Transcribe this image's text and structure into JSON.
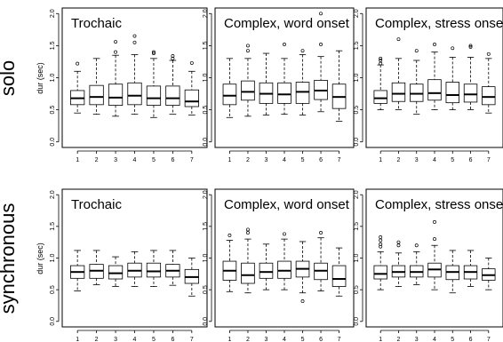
{
  "row_labels": [
    "solo",
    "synchronous"
  ],
  "y_axis_label": "dur (sec)",
  "chart_data": [
    {
      "type": "box",
      "title": "Trochaic",
      "row_label": "solo",
      "categories": [
        "1",
        "2",
        "3",
        "4",
        "5",
        "6",
        "7"
      ],
      "ylim": [
        0,
        2.0
      ],
      "yticks": [
        0.0,
        0.5,
        1.0,
        1.5,
        2.0
      ],
      "ytick_labels": [
        "0.0",
        "0.5",
        "1.0",
        "1.5",
        "2.0"
      ],
      "boxes": [
        {
          "whislo": 0.45,
          "q1": 0.58,
          "med": 0.68,
          "q3": 0.8,
          "whishi": 1.1,
          "fliers": [
            1.22
          ]
        },
        {
          "whislo": 0.43,
          "q1": 0.58,
          "med": 0.7,
          "q3": 0.88,
          "whishi": 1.3,
          "fliers": []
        },
        {
          "whislo": 0.4,
          "q1": 0.57,
          "med": 0.69,
          "q3": 0.9,
          "whishi": 1.35,
          "fliers": [
            1.4,
            1.56
          ]
        },
        {
          "whislo": 0.43,
          "q1": 0.58,
          "med": 0.72,
          "q3": 0.92,
          "whishi": 1.36,
          "fliers": [
            1.55,
            1.65
          ]
        },
        {
          "whislo": 0.38,
          "q1": 0.57,
          "med": 0.68,
          "q3": 0.87,
          "whishi": 1.3,
          "fliers": [
            1.38,
            1.4
          ]
        },
        {
          "whislo": 0.43,
          "q1": 0.57,
          "med": 0.68,
          "q3": 0.87,
          "whishi": 1.27,
          "fliers": [
            1.3,
            1.34
          ]
        },
        {
          "whislo": 0.42,
          "q1": 0.55,
          "med": 0.63,
          "q3": 0.81,
          "whishi": 1.1,
          "fliers": [
            1.23
          ]
        }
      ]
    },
    {
      "type": "box",
      "title": "Complex, word onset",
      "row_label": "solo",
      "categories": [
        "1",
        "2",
        "3",
        "4",
        "5",
        "6",
        "7"
      ],
      "ylim": [
        0,
        2.0
      ],
      "yticks": [
        0.0,
        0.5,
        1.0,
        1.5,
        2.0
      ],
      "ytick_labels": [
        "0.0",
        "0.5",
        "1.0",
        "1.5",
        "2.0"
      ],
      "boxes": [
        {
          "whislo": 0.38,
          "q1": 0.58,
          "med": 0.72,
          "q3": 0.9,
          "whishi": 1.3,
          "fliers": []
        },
        {
          "whislo": 0.4,
          "q1": 0.65,
          "med": 0.78,
          "q3": 0.95,
          "whishi": 1.3,
          "fliers": [
            1.42,
            1.5
          ]
        },
        {
          "whislo": 0.42,
          "q1": 0.6,
          "med": 0.75,
          "q3": 0.92,
          "whishi": 1.38,
          "fliers": []
        },
        {
          "whislo": 0.43,
          "q1": 0.6,
          "med": 0.74,
          "q3": 0.92,
          "whishi": 1.3,
          "fliers": [
            1.52
          ]
        },
        {
          "whislo": 0.42,
          "q1": 0.6,
          "med": 0.78,
          "q3": 0.93,
          "whishi": 1.36,
          "fliers": [
            1.42
          ]
        },
        {
          "whislo": 0.47,
          "q1": 0.66,
          "med": 0.8,
          "q3": 0.96,
          "whishi": 1.33,
          "fliers": [
            1.52,
            2.0
          ]
        },
        {
          "whislo": 0.32,
          "q1": 0.52,
          "med": 0.7,
          "q3": 0.9,
          "whishi": 1.42,
          "fliers": []
        }
      ]
    },
    {
      "type": "box",
      "title": "Complex, stress onset",
      "row_label": "solo",
      "categories": [
        "1",
        "2",
        "3",
        "4",
        "5",
        "6",
        "7"
      ],
      "ylim": [
        0,
        2.0
      ],
      "yticks": [
        0.0,
        0.5,
        1.0,
        1.5,
        2.0
      ],
      "ytick_labels": [
        "0.0",
        "0.5",
        "1.0",
        "1.5",
        "2.0"
      ],
      "boxes": [
        {
          "whislo": 0.5,
          "q1": 0.6,
          "med": 0.68,
          "q3": 0.8,
          "whishi": 1.2,
          "fliers": [
            1.22,
            1.27,
            1.3
          ]
        },
        {
          "whislo": 0.5,
          "q1": 0.63,
          "med": 0.75,
          "q3": 0.92,
          "whishi": 1.3,
          "fliers": [
            1.6
          ]
        },
        {
          "whislo": 0.43,
          "q1": 0.63,
          "med": 0.75,
          "q3": 0.9,
          "whishi": 1.27,
          "fliers": [
            1.42
          ]
        },
        {
          "whislo": 0.5,
          "q1": 0.65,
          "med": 0.76,
          "q3": 0.97,
          "whishi": 1.4,
          "fliers": [
            1.52
          ]
        },
        {
          "whislo": 0.5,
          "q1": 0.61,
          "med": 0.73,
          "q3": 0.93,
          "whishi": 1.32,
          "fliers": [
            1.46
          ]
        },
        {
          "whislo": 0.5,
          "q1": 0.62,
          "med": 0.74,
          "q3": 0.9,
          "whishi": 1.32,
          "fliers": [
            1.48,
            1.5
          ]
        },
        {
          "whislo": 0.45,
          "q1": 0.58,
          "med": 0.7,
          "q3": 0.86,
          "whishi": 1.3,
          "fliers": [
            1.37
          ]
        }
      ]
    },
    {
      "type": "box",
      "title": "Trochaic",
      "row_label": "synchronous",
      "categories": [
        "1",
        "2",
        "3",
        "4",
        "5",
        "6",
        "7"
      ],
      "ylim": [
        0,
        2.0
      ],
      "yticks": [
        0.0,
        0.5,
        1.0,
        1.5,
        2.0
      ],
      "ytick_labels": [
        "0.0",
        "0.5",
        "1.0",
        "1.5",
        "2.0"
      ],
      "boxes": [
        {
          "whislo": 0.48,
          "q1": 0.68,
          "med": 0.78,
          "q3": 0.88,
          "whishi": 1.12,
          "fliers": []
        },
        {
          "whislo": 0.58,
          "q1": 0.68,
          "med": 0.8,
          "q3": 0.9,
          "whishi": 1.12,
          "fliers": []
        },
        {
          "whislo": 0.55,
          "q1": 0.67,
          "med": 0.76,
          "q3": 0.88,
          "whishi": 1.02,
          "fliers": []
        },
        {
          "whislo": 0.55,
          "q1": 0.7,
          "med": 0.8,
          "q3": 0.92,
          "whishi": 1.1,
          "fliers": []
        },
        {
          "whislo": 0.55,
          "q1": 0.7,
          "med": 0.79,
          "q3": 0.92,
          "whishi": 1.12,
          "fliers": []
        },
        {
          "whislo": 0.57,
          "q1": 0.7,
          "med": 0.8,
          "q3": 0.9,
          "whishi": 1.12,
          "fliers": []
        },
        {
          "whislo": 0.4,
          "q1": 0.6,
          "med": 0.7,
          "q3": 0.82,
          "whishi": 1.0,
          "fliers": []
        }
      ]
    },
    {
      "type": "box",
      "title": "Complex, word onset",
      "row_label": "synchronous",
      "categories": [
        "1",
        "2",
        "3",
        "4",
        "5",
        "6",
        "7"
      ],
      "ylim": [
        0,
        2.0
      ],
      "yticks": [
        0.0,
        0.5,
        1.0,
        1.5,
        2.0
      ],
      "ytick_labels": [
        "0.0",
        "0.5",
        "1.0",
        "1.5",
        "2.0"
      ],
      "boxes": [
        {
          "whislo": 0.47,
          "q1": 0.65,
          "med": 0.8,
          "q3": 0.95,
          "whishi": 1.28,
          "fliers": [
            1.36
          ]
        },
        {
          "whislo": 0.45,
          "q1": 0.6,
          "med": 0.73,
          "q3": 0.92,
          "whishi": 1.3,
          "fliers": [
            1.4,
            1.45
          ]
        },
        {
          "whislo": 0.5,
          "q1": 0.68,
          "med": 0.78,
          "q3": 0.92,
          "whishi": 1.22,
          "fliers": []
        },
        {
          "whislo": 0.5,
          "q1": 0.68,
          "med": 0.8,
          "q3": 0.95,
          "whishi": 1.3,
          "fliers": [
            1.38
          ]
        },
        {
          "whislo": 0.45,
          "q1": 0.7,
          "med": 0.83,
          "q3": 0.95,
          "whishi": 1.26,
          "fliers": [
            0.32
          ]
        },
        {
          "whislo": 0.48,
          "q1": 0.66,
          "med": 0.8,
          "q3": 0.92,
          "whishi": 1.32,
          "fliers": [
            1.4
          ]
        },
        {
          "whislo": 0.4,
          "q1": 0.55,
          "med": 0.67,
          "q3": 0.88,
          "whishi": 1.16,
          "fliers": []
        }
      ]
    },
    {
      "type": "box",
      "title": "Complex, stress onset",
      "row_label": "synchronous",
      "categories": [
        "1",
        "2",
        "3",
        "4",
        "5",
        "6",
        "7"
      ],
      "ylim": [
        0,
        2.0
      ],
      "yticks": [
        0.0,
        0.5,
        1.0,
        1.5,
        2.0
      ],
      "ytick_labels": [
        "0.0",
        "0.5",
        "1.0",
        "1.5",
        "2.0"
      ],
      "boxes": [
        {
          "whislo": 0.5,
          "q1": 0.67,
          "med": 0.75,
          "q3": 0.88,
          "whishi": 1.1,
          "fliers": [
            1.18,
            1.22,
            1.28,
            1.33
          ]
        },
        {
          "whislo": 0.55,
          "q1": 0.7,
          "med": 0.78,
          "q3": 0.88,
          "whishi": 1.08,
          "fliers": [
            1.2,
            1.25
          ]
        },
        {
          "whislo": 0.58,
          "q1": 0.7,
          "med": 0.78,
          "q3": 0.88,
          "whishi": 1.1,
          "fliers": [
            1.2
          ]
        },
        {
          "whislo": 0.5,
          "q1": 0.7,
          "med": 0.82,
          "q3": 0.92,
          "whishi": 1.2,
          "fliers": [
            1.3,
            1.57
          ]
        },
        {
          "whislo": 0.45,
          "q1": 0.66,
          "med": 0.78,
          "q3": 0.88,
          "whishi": 1.12,
          "fliers": []
        },
        {
          "whislo": 0.55,
          "q1": 0.67,
          "med": 0.78,
          "q3": 0.88,
          "whishi": 1.12,
          "fliers": []
        },
        {
          "whislo": 0.5,
          "q1": 0.65,
          "med": 0.73,
          "q3": 0.83,
          "whishi": 1.0,
          "fliers": []
        }
      ]
    }
  ]
}
